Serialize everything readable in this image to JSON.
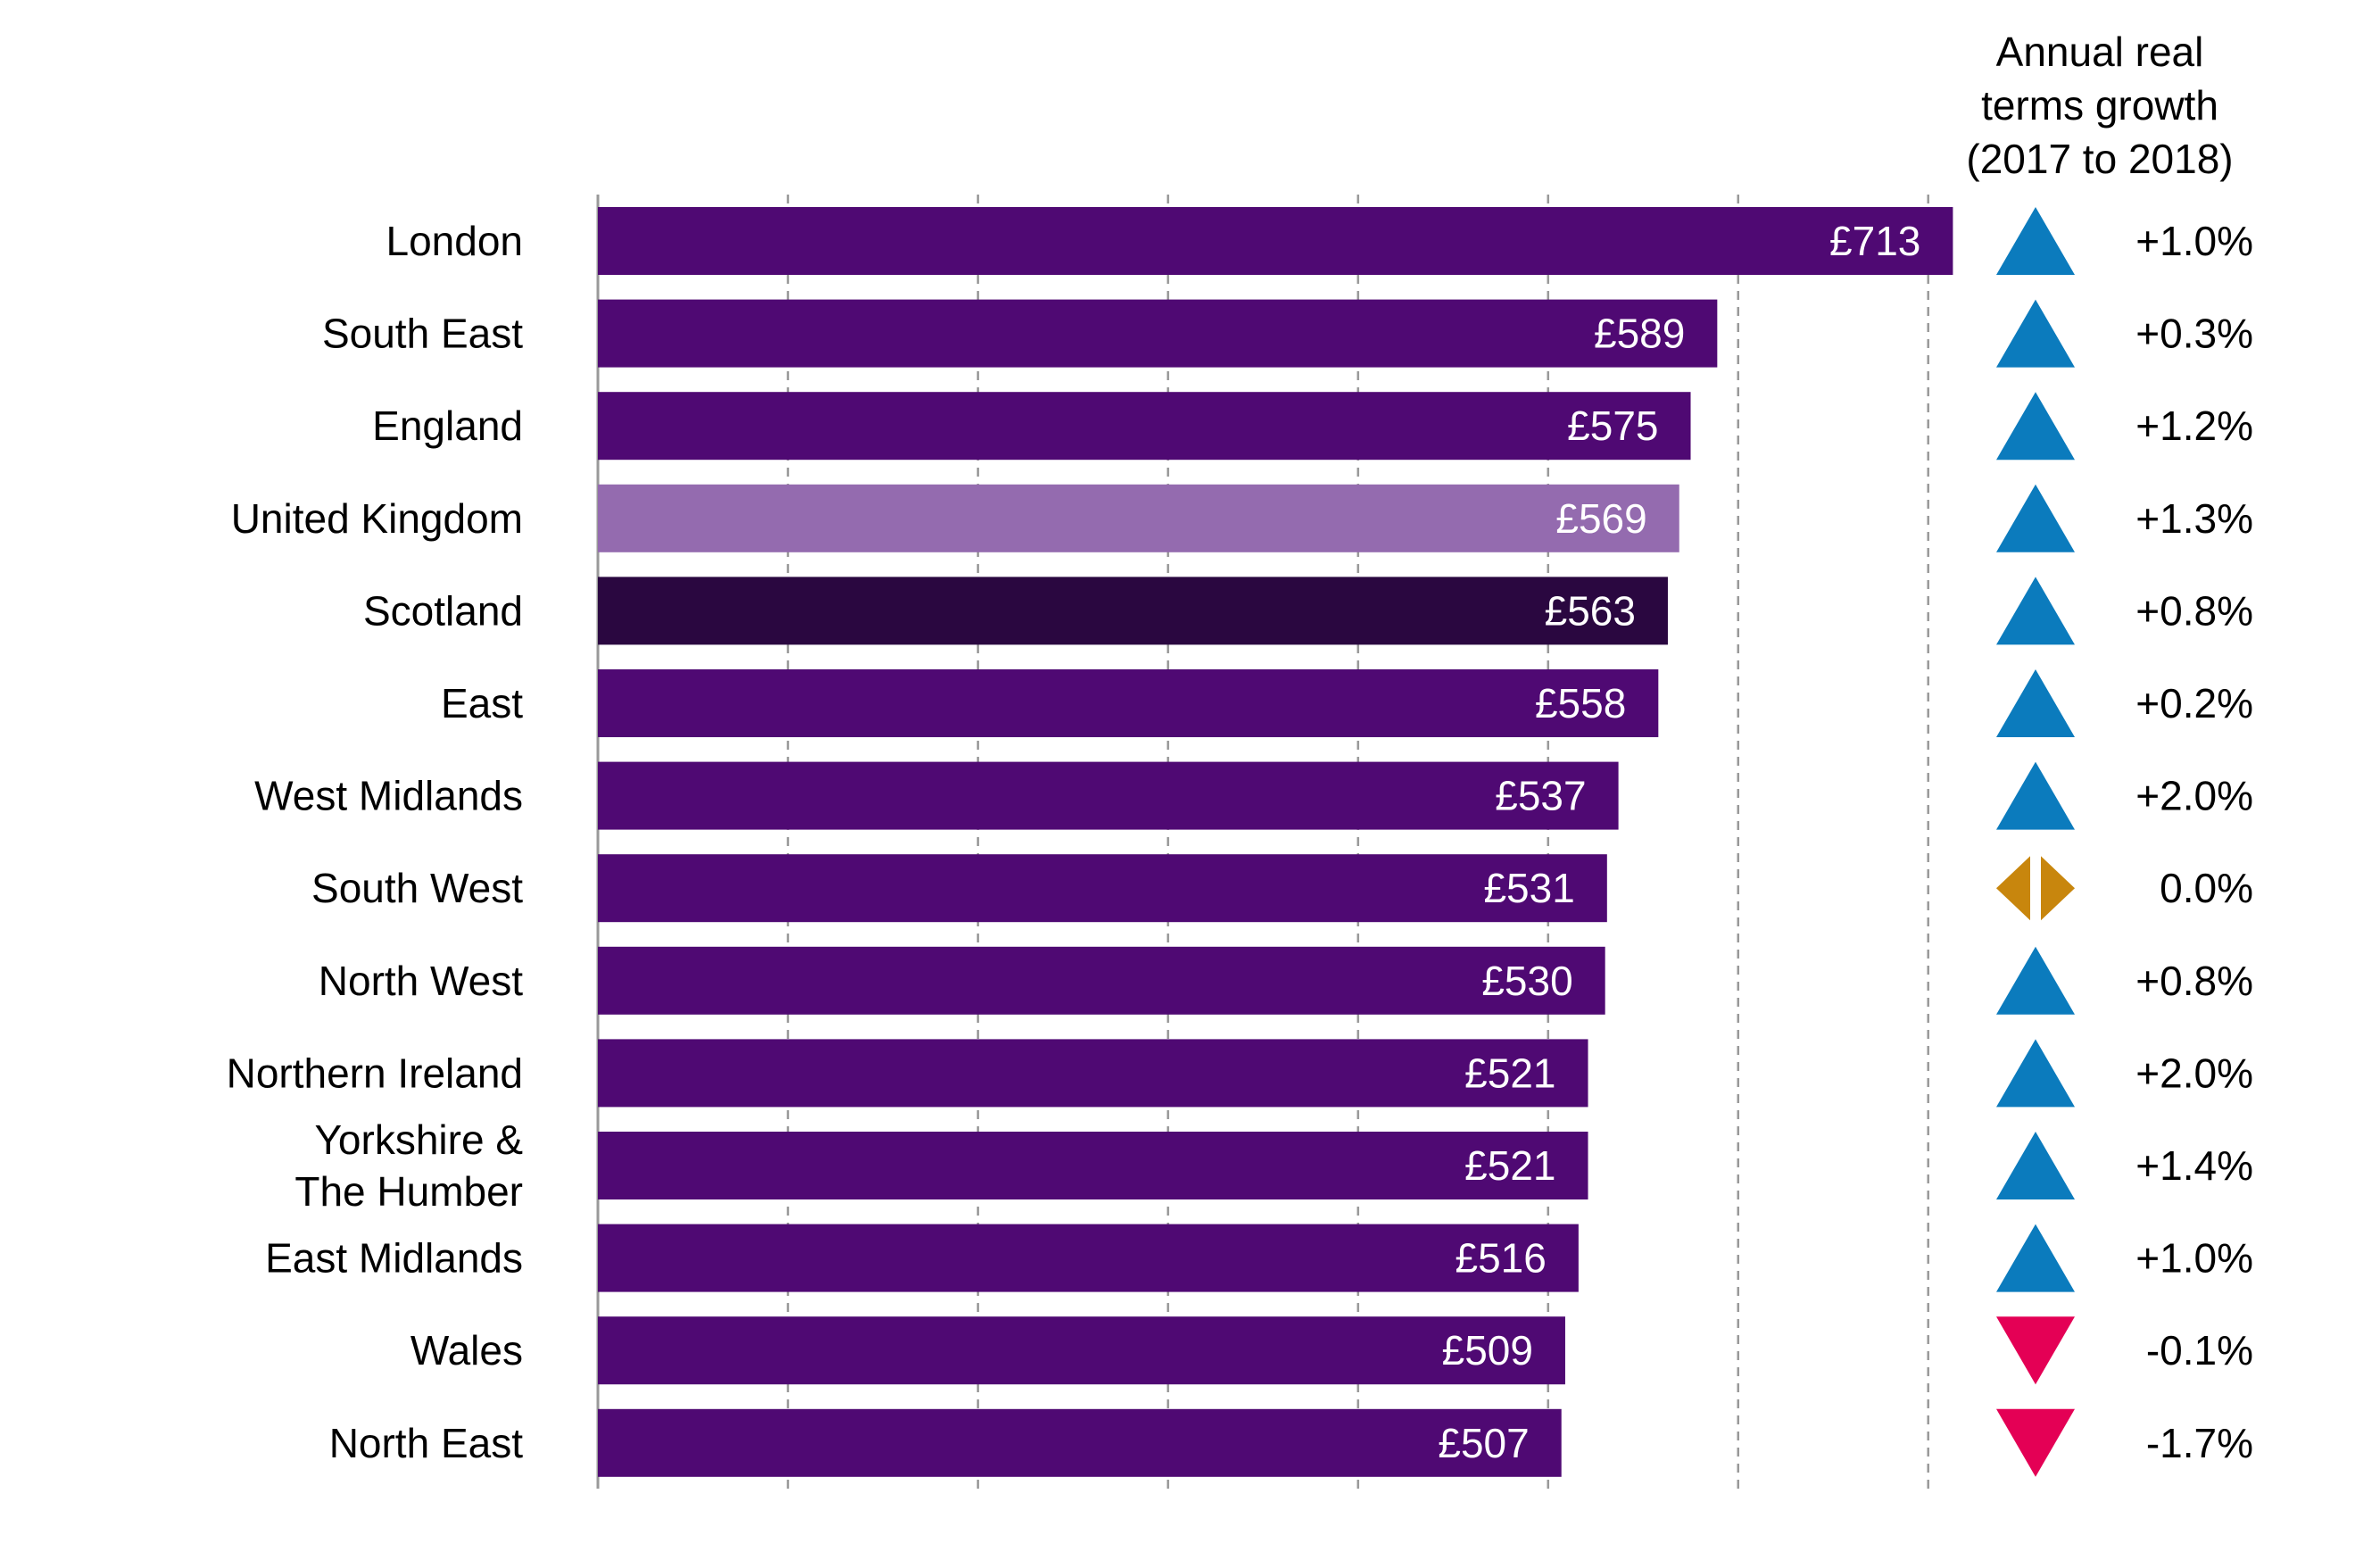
{
  "chart_data": {
    "type": "bar",
    "orientation": "horizontal",
    "categories": [
      [
        "London"
      ],
      [
        "South East"
      ],
      [
        "England"
      ],
      [
        "United Kingdom"
      ],
      [
        "Scotland"
      ],
      [
        "East"
      ],
      [
        "West Midlands"
      ],
      [
        "South West"
      ],
      [
        "North West"
      ],
      [
        "Northern Ireland"
      ],
      [
        "Yorkshire &",
        "The Humber"
      ],
      [
        "East Midlands"
      ],
      [
        "Wales"
      ],
      [
        "North East"
      ]
    ],
    "values": [
      713,
      589,
      575,
      569,
      563,
      558,
      537,
      531,
      530,
      521,
      521,
      516,
      509,
      507
    ],
    "value_labels": [
      "£713",
      "£589",
      "£575",
      "£569",
      "£563",
      "£558",
      "£537",
      "£531",
      "£530",
      "£521",
      "£521",
      "£516",
      "£509",
      "£507"
    ],
    "xlim": [
      0,
      750
    ],
    "grid": true,
    "grid_step": 100,
    "bar_colors": [
      "#4f0973",
      "#4f0973",
      "#4f0973",
      "#946baf",
      "#2a0740",
      "#4f0973",
      "#4f0973",
      "#4f0973",
      "#4f0973",
      "#4f0973",
      "#4f0973",
      "#4f0973",
      "#4f0973",
      "#4f0973"
    ],
    "growth": {
      "header": [
        "Annual real",
        "terms growth",
        "(2017 to 2018)"
      ],
      "values": [
        "+1.0%",
        "+0.3%",
        "+1.2%",
        "+1.3%",
        "+0.8%",
        "+0.2%",
        "+2.0%",
        "0.0%",
        "+0.8%",
        "+2.0%",
        "+1.4%",
        "+1.0%",
        "-0.1%",
        "-1.7%"
      ],
      "directions": [
        "up",
        "up",
        "up",
        "up",
        "up",
        "up",
        "up",
        "flat",
        "up",
        "up",
        "up",
        "up",
        "down",
        "down"
      ],
      "colors": {
        "up": "#0b7bbd",
        "flat": "#c8860d",
        "down": "#e40055"
      },
      "icons": {
        "up": "triangle-up-icon",
        "flat": "diamond-split-icon",
        "down": "triangle-down-icon"
      }
    }
  }
}
